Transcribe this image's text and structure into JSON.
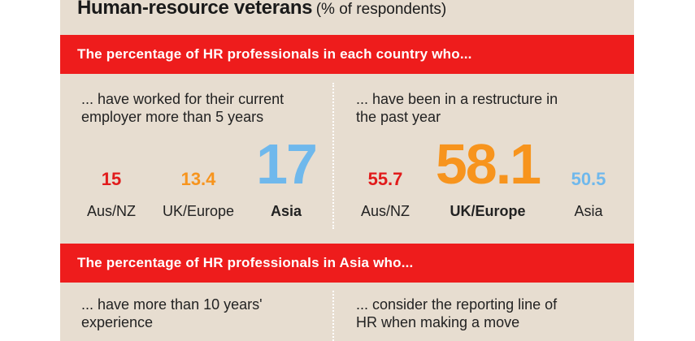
{
  "title": {
    "main": "Human-resource veterans",
    "sub": "(% of respondents)"
  },
  "banners": [
    "The percentage of HR professionals in each country who...",
    "The percentage of HR professionals in Asia who..."
  ],
  "colors": {
    "panel": "#e7ddd0",
    "banner": "#ee1c1c",
    "aus_nz": "#e11b1b",
    "uk_europe": "#f7941d",
    "asia": "#6fb8ec"
  },
  "chart_data": [
    {
      "type": "table",
      "caption": "... have worked for their current employer more than 5 years",
      "categories": [
        "Aus/NZ",
        "UK/Europe",
        "Asia"
      ],
      "values": [
        15,
        13.4,
        17
      ],
      "value_labels": [
        "15",
        "13.4",
        "17"
      ],
      "highlight": "Asia"
    },
    {
      "type": "table",
      "caption": "... have been in a restructure in the past year",
      "categories": [
        "Aus/NZ",
        "UK/Europe",
        "Asia"
      ],
      "values": [
        55.7,
        58.1,
        50.5
      ],
      "value_labels": [
        "55.7",
        "58.1",
        "50.5"
      ],
      "highlight": "UK/Europe"
    }
  ],
  "section2": {
    "left_caption": "... have more than 10 years' experience",
    "right_caption": "... consider the reporting line of HR when making a move"
  }
}
